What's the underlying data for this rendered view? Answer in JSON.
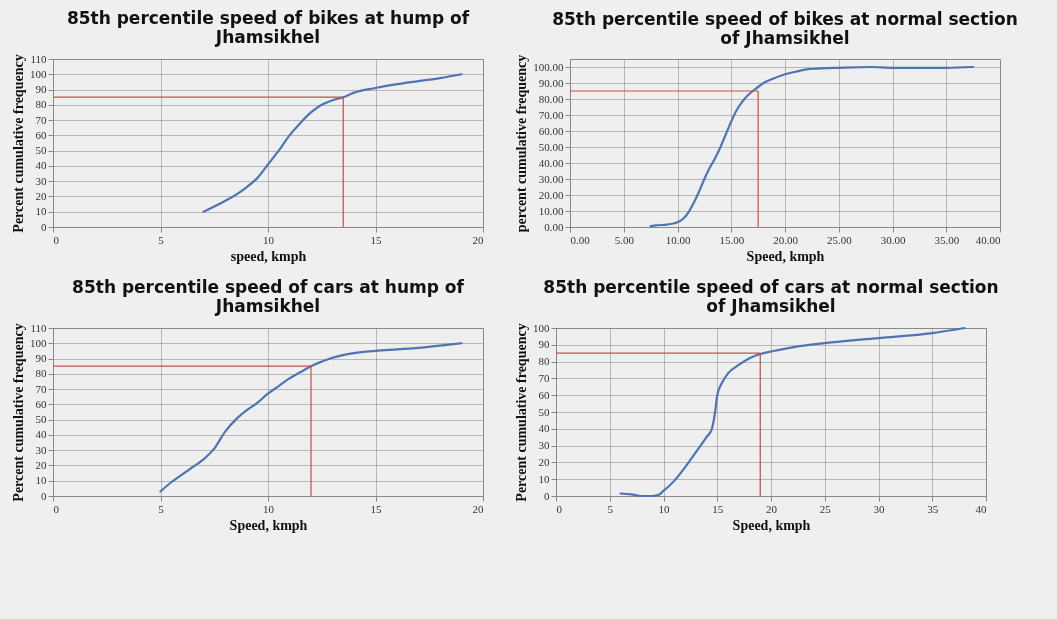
{
  "chart_data": [
    {
      "type": "line",
      "title": "85th percentile speed of bikes at hump of Jhamsikhel",
      "xlabel": "speed, kmph",
      "ylabel": "Percent cumulative frequency",
      "xlim": [
        0,
        20
      ],
      "xticks": [
        0,
        5,
        10,
        15,
        20
      ],
      "ylim": [
        0,
        110
      ],
      "yticks": [
        0,
        10,
        20,
        30,
        40,
        50,
        60,
        70,
        80,
        90,
        100,
        110
      ],
      "grid": true,
      "x": [
        7,
        8,
        8.5,
        9,
        9.5,
        10,
        10.5,
        11,
        11.5,
        12,
        12.5,
        13,
        13.5,
        14,
        15,
        16,
        17,
        18,
        19
      ],
      "series": [
        {
          "color": "#4f74b3",
          "values": [
            10,
            17,
            21,
            26,
            32,
            41,
            50,
            60,
            68,
            75,
            80,
            83,
            85,
            88,
            91,
            93.5,
            95.5,
            97.5,
            100
          ]
        }
      ],
      "ref_lines": [
        {
          "axis": "y",
          "value": 85,
          "color": "#c0504d"
        },
        {
          "axis": "x",
          "value": 13.5,
          "color": "#c0504d"
        }
      ]
    },
    {
      "type": "line",
      "title": "85th percentile speed of bikes at normal section of Jhamsikhel",
      "xlabel": "Speed, kmph",
      "ylabel": "percent cumulative frequency",
      "xlim": [
        0,
        40
      ],
      "xticks": [
        {
          "value": 0,
          "label": "0.00"
        },
        {
          "value": 5,
          "label": "5.00"
        },
        {
          "value": 10,
          "label": "10.00"
        },
        {
          "value": 15,
          "label": "15.00"
        },
        {
          "value": 20,
          "label": "20.00"
        },
        {
          "value": 25,
          "label": "25.00"
        },
        {
          "value": 30,
          "label": "30.00"
        },
        {
          "value": 35,
          "label": "35.00"
        },
        {
          "value": 40,
          "label": "40.00"
        }
      ],
      "ylim": [
        0,
        105
      ],
      "yticks": [
        {
          "value": 0,
          "label": "0.00"
        },
        {
          "value": 10,
          "label": "10.00"
        },
        {
          "value": 20,
          "label": "20.00"
        },
        {
          "value": 30,
          "label": "30.00"
        },
        {
          "value": 40,
          "label": "40.00"
        },
        {
          "value": 50,
          "label": "50.00"
        },
        {
          "value": 60,
          "label": "60.00"
        },
        {
          "value": 70,
          "label": "70.00"
        },
        {
          "value": 80,
          "label": "80.00"
        },
        {
          "value": 90,
          "label": "90.00"
        },
        {
          "value": 100,
          "label": "100.00"
        }
      ],
      "grid": true,
      "x": [
        7.5,
        8,
        9,
        9.5,
        10,
        10.5,
        11,
        11.5,
        12,
        12.5,
        13,
        13.5,
        14,
        14.5,
        15,
        15.5,
        16,
        16.5,
        17,
        17.5,
        18,
        19,
        20,
        21,
        22,
        23,
        25,
        28,
        30,
        33,
        35,
        37.5
      ],
      "series": [
        {
          "color": "#4f74b3",
          "values": [
            0.5,
            1,
            1.5,
            2,
            3,
            5,
            9,
            15,
            22,
            30,
            37,
            43,
            50,
            58,
            66,
            73,
            78,
            82,
            85,
            87.5,
            90,
            93,
            95.5,
            97,
            98.5,
            99,
            99.5,
            100,
            99.5,
            99.5,
            99.5,
            100
          ]
        }
      ],
      "ref_lines": [
        {
          "axis": "y",
          "value": 85,
          "color": "#c0504d"
        },
        {
          "axis": "x",
          "value": 17.5,
          "color": "#c0504d"
        }
      ]
    },
    {
      "type": "line",
      "title": "85th percentile speed of cars at hump of Jhamsikhel",
      "xlabel": "Speed, kmph",
      "ylabel": "Percent cumulative frequency",
      "xlim": [
        0,
        20
      ],
      "xticks": [
        0,
        5,
        10,
        15,
        20
      ],
      "ylim": [
        0,
        110
      ],
      "yticks": [
        0,
        10,
        20,
        30,
        40,
        50,
        60,
        70,
        80,
        90,
        100,
        110
      ],
      "grid": true,
      "x": [
        5,
        5.5,
        6,
        6.5,
        7,
        7.5,
        8,
        8.5,
        9,
        9.5,
        10,
        10.5,
        11,
        11.5,
        12,
        12.5,
        13,
        14,
        15,
        16,
        17,
        18,
        19
      ],
      "series": [
        {
          "color": "#4f74b3",
          "values": [
            3,
            9,
            14,
            19,
            24,
            31,
            42,
            50,
            56,
            61,
            67,
            72,
            77,
            81,
            85,
            88,
            90.5,
            93.5,
            95,
            96,
            97,
            98.5,
            100
          ]
        }
      ],
      "ref_lines": [
        {
          "axis": "y",
          "value": 85,
          "color": "#c0504d"
        },
        {
          "axis": "x",
          "value": 12,
          "color": "#c0504d"
        }
      ]
    },
    {
      "type": "line",
      "title": "85th percentile speed of cars at normal section of Jhamsikhel",
      "xlabel": "Speed, kmph",
      "ylabel": "Percent cumulative frequency",
      "xlim": [
        0,
        40
      ],
      "xticks": [
        0,
        5,
        10,
        15,
        20,
        25,
        30,
        35,
        40
      ],
      "ylim": [
        0,
        100
      ],
      "yticks": [
        0,
        10,
        20,
        30,
        40,
        50,
        60,
        70,
        80,
        90,
        100
      ],
      "grid": true,
      "x": [
        6,
        7,
        8,
        9,
        9.5,
        10,
        11,
        12,
        13,
        14,
        14.5,
        14.8,
        15,
        15.5,
        16,
        17,
        18,
        19,
        20,
        22,
        25,
        30,
        35,
        38
      ],
      "series": [
        {
          "color": "#4f74b3",
          "values": [
            1.5,
            1,
            0,
            0,
            0.5,
            3,
            9,
            17,
            26,
            35,
            40,
            50,
            60,
            68,
            73,
            78,
            82,
            84.5,
            86,
            88.5,
            91,
            94,
            97,
            100
          ]
        }
      ],
      "ref_lines": [
        {
          "axis": "y",
          "value": 85,
          "color": "#c0504d"
        },
        {
          "axis": "x",
          "value": 19,
          "color": "#c0504d"
        }
      ]
    }
  ]
}
